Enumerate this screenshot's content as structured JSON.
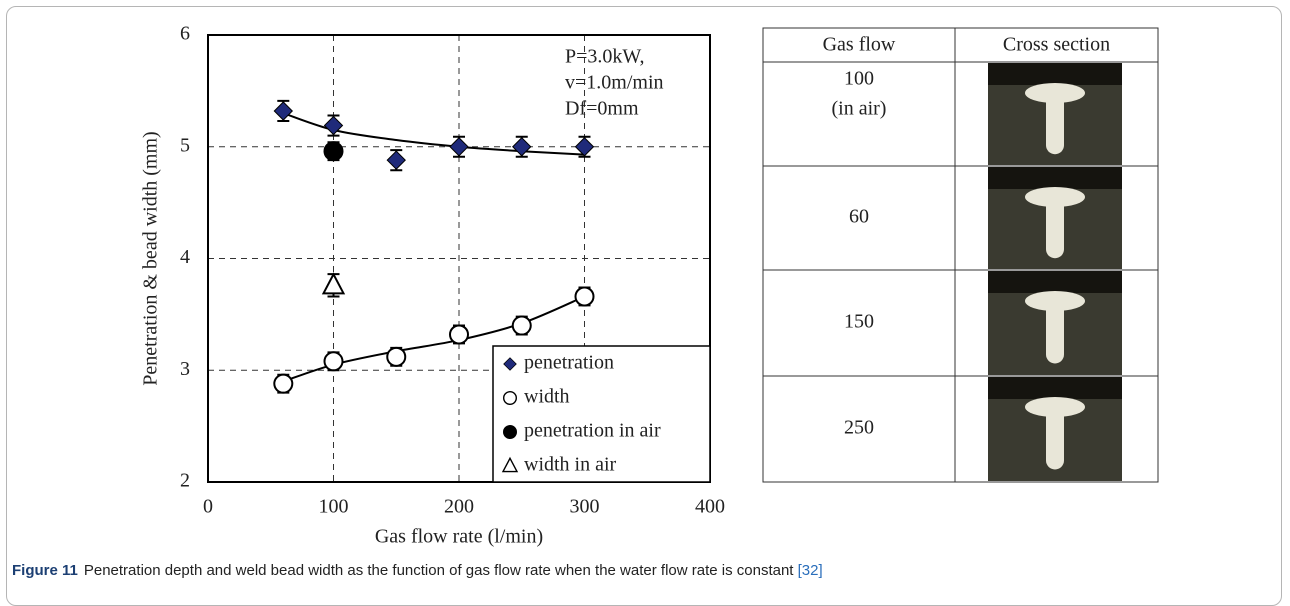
{
  "chart_data": {
    "type": "scatter",
    "xlabel": "Gas flow rate (l/min)",
    "ylabel": "Penetration & bead width (mm)",
    "xlim": [
      0,
      400
    ],
    "xticks": [
      0,
      100,
      200,
      300,
      400
    ],
    "ylim": [
      2,
      6
    ],
    "yticks": [
      2,
      3,
      4,
      5,
      6
    ],
    "grid": true,
    "legend": "lower right",
    "annotations": [
      "P=3.0kW,",
      "v=1.0m/min",
      "Df=0mm"
    ],
    "series": [
      {
        "name": "penetration",
        "color": "#1f2a7a",
        "marker": "diamond",
        "x": [
          60,
          100,
          150,
          200,
          250,
          300
        ],
        "values": [
          5.32,
          5.19,
          4.88,
          5.0,
          5.0,
          5.0
        ],
        "errors": [
          0.09,
          0.09,
          0.09,
          0.09,
          0.09,
          0.09
        ],
        "trend": [
          5.3,
          5.15,
          5.06,
          5.0,
          4.96,
          4.93
        ]
      },
      {
        "name": "width",
        "color": "#ffffff",
        "marker": "circle",
        "x": [
          60,
          100,
          150,
          200,
          250,
          300
        ],
        "values": [
          2.88,
          3.08,
          3.12,
          3.32,
          3.4,
          3.66
        ],
        "errors": [
          0.08,
          0.08,
          0.08,
          0.08,
          0.08,
          0.08
        ],
        "trend": [
          2.9,
          3.05,
          3.17,
          3.27,
          3.42,
          3.66
        ]
      },
      {
        "name": "penetration in air",
        "color": "#000000",
        "marker": "circle",
        "x": [
          100
        ],
        "values": [
          4.96
        ],
        "errors": [
          0.08
        ]
      },
      {
        "name": "width in air",
        "color": "#ffffff",
        "marker": "triangle",
        "x": [
          100
        ],
        "values": [
          3.76
        ],
        "errors": [
          0.1
        ]
      }
    ]
  },
  "table": {
    "header": [
      "Gas flow",
      "Cross section"
    ],
    "rows": [
      {
        "gas_flow": "100",
        "note": "(in air)"
      },
      {
        "gas_flow": "60"
      },
      {
        "gas_flow": "150"
      },
      {
        "gas_flow": "250"
      }
    ]
  },
  "caption": {
    "label": "Figure 11",
    "text": "Penetration depth and weld bead width as the function of gas flow rate when the water flow rate is constant",
    "ref": "[32]"
  }
}
